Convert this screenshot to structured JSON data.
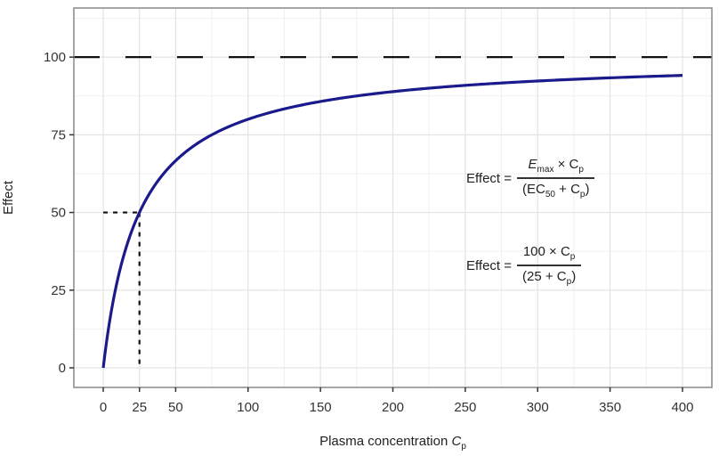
{
  "chart_data": {
    "type": "line",
    "title": "",
    "xlabel": "Plasma concentration",
    "xlabel_symbol": "C",
    "xlabel_sub": "p",
    "ylabel": "Effect",
    "xlim": [
      -20.3,
      420.3
    ],
    "ylim": [
      -6.3,
      115.8
    ],
    "xticks": [
      0,
      25,
      50,
      100,
      150,
      200,
      250,
      300,
      350,
      400
    ],
    "yticks": [
      0,
      25,
      50,
      75,
      100
    ],
    "grid": true,
    "series": [
      {
        "name": "Effect",
        "function": "100*x/(25+x)",
        "x_range": [
          0,
          400
        ],
        "color": "#1a1a8c"
      }
    ],
    "reference_lines": [
      {
        "type": "horizontal",
        "y": 100,
        "style": "dashed",
        "label": "Emax"
      },
      {
        "type": "segment",
        "from": [
          0,
          50
        ],
        "to": [
          25,
          50
        ],
        "style": "dotted"
      },
      {
        "type": "segment",
        "from": [
          25,
          50
        ],
        "to": [
          25,
          0
        ],
        "style": "dotted"
      }
    ],
    "annotations": [
      {
        "lhs": "Effect =",
        "numerator": [
          "E",
          "max",
          "× C",
          "p"
        ],
        "denominator": [
          "(EC",
          "50",
          " + C",
          "p",
          ")"
        ]
      },
      {
        "lhs": "Effect =",
        "numerator": [
          "100 × C",
          "p"
        ],
        "denominator": [
          "(25 + C",
          "p",
          ")"
        ]
      }
    ]
  }
}
